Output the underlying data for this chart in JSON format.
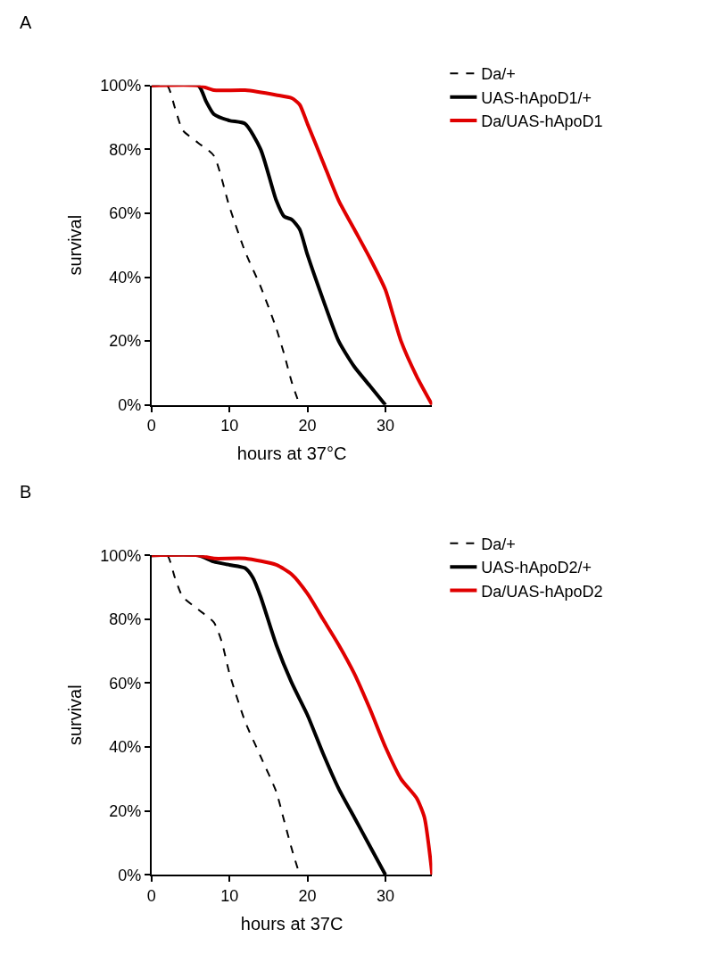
{
  "chart_data": [
    {
      "type": "line",
      "title": "A",
      "xlabel": "hours at 37°C",
      "ylabel": "survival",
      "xlim": [
        0,
        36
      ],
      "xticks": [
        0,
        10,
        20,
        30
      ],
      "ylim": [
        0,
        100
      ],
      "yticks": [
        {
          "value": 0,
          "label": "0%"
        },
        {
          "value": 20,
          "label": "20%"
        },
        {
          "value": 40,
          "label": "40%"
        },
        {
          "value": 60,
          "label": "60%"
        },
        {
          "value": 80,
          "label": "80%"
        },
        {
          "value": 100,
          "label": "100%"
        }
      ],
      "legend": "top right",
      "marker": "none",
      "series": [
        {
          "name": "Da/+",
          "color": "#000000",
          "line_style": "dashed",
          "x": [
            0,
            2,
            3,
            4,
            6,
            8,
            10,
            12,
            14,
            16,
            17,
            18,
            19
          ],
          "values": [
            100,
            100,
            93,
            86,
            82,
            78,
            62,
            48,
            37,
            24,
            16,
            7,
            0
          ]
        },
        {
          "name": "UAS-hApoD1/+",
          "color": "#000000",
          "line_style": "solid",
          "x": [
            0,
            6,
            7,
            8,
            10,
            12,
            14,
            16,
            17,
            18,
            19,
            20,
            22,
            24,
            26,
            28,
            30
          ],
          "values": [
            100,
            100,
            95,
            91,
            89,
            88,
            80,
            64,
            59,
            58,
            55,
            47,
            33,
            20,
            12,
            6,
            0
          ]
        },
        {
          "name": "Da/UAS-hApoD1",
          "color": "#e00000",
          "line_style": "solid",
          "x": [
            0,
            6,
            8,
            12,
            16,
            18,
            19,
            20,
            22,
            24,
            26,
            28,
            30,
            31,
            32,
            34,
            36
          ],
          "values": [
            100,
            100,
            98.5,
            98.5,
            97,
            96,
            94,
            88,
            76,
            64,
            55,
            46,
            36,
            28,
            20,
            9,
            0
          ]
        }
      ]
    },
    {
      "type": "line",
      "title": "B",
      "xlabel": "hours at 37C",
      "ylabel": "survival",
      "xlim": [
        0,
        36
      ],
      "xticks": [
        0,
        10,
        20,
        30
      ],
      "ylim": [
        0,
        100
      ],
      "yticks": [
        {
          "value": 0,
          "label": "0%"
        },
        {
          "value": 20,
          "label": "20%"
        },
        {
          "value": 40,
          "label": "40%"
        },
        {
          "value": 60,
          "label": "60%"
        },
        {
          "value": 80,
          "label": "80%"
        },
        {
          "value": 100,
          "label": "100%"
        }
      ],
      "legend": "top right",
      "marker": "none",
      "series": [
        {
          "name": "Da/+",
          "color": "#000000",
          "line_style": "dashed",
          "x": [
            0,
            2,
            3,
            4,
            6,
            8,
            9,
            10,
            12,
            14,
            16,
            17,
            18,
            19
          ],
          "values": [
            100,
            100,
            93,
            87,
            83,
            79,
            73,
            63,
            48,
            37,
            26,
            17,
            8,
            0
          ]
        },
        {
          "name": "UAS-hApoD2/+",
          "color": "#000000",
          "line_style": "solid",
          "x": [
            0,
            6,
            8,
            10,
            12,
            13,
            14,
            16,
            18,
            20,
            22,
            24,
            26,
            28,
            30
          ],
          "values": [
            100,
            100,
            98,
            97,
            96,
            93,
            87,
            72,
            60,
            50,
            38,
            27,
            18,
            9,
            0
          ]
        },
        {
          "name": "Da/UAS-hApoD2",
          "color": "#e00000",
          "line_style": "solid",
          "x": [
            0,
            6,
            8,
            12,
            16,
            18,
            20,
            22,
            24,
            26,
            28,
            30,
            32,
            34,
            35,
            36
          ],
          "values": [
            100,
            100,
            99,
            99,
            97,
            94,
            88,
            80,
            72,
            63,
            52,
            40,
            30,
            24,
            18,
            0
          ]
        }
      ]
    }
  ]
}
